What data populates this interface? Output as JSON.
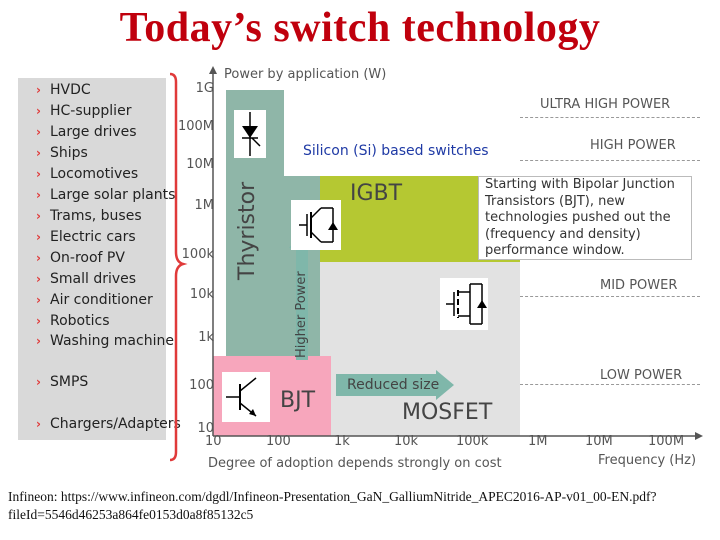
{
  "title": "Today’s switch technology",
  "applications": [
    "HVDC",
    "HC-supplier",
    "Large drives",
    "Ships",
    "Locomotives",
    "Large solar plants",
    "Trams, buses",
    "Electric cars",
    "On-roof PV",
    "Small drives",
    "Air conditioner",
    "Robotics",
    "Washing machine",
    "SMPS",
    "Chargers/Adapters"
  ],
  "y_axis": {
    "title": "Power by application (W)",
    "ticks": [
      "1G",
      "100M",
      "10M",
      "1M",
      "100k",
      "10k",
      "1k",
      "100",
      "10"
    ]
  },
  "x_axis": {
    "title": "Frequency (Hz)",
    "ticks": [
      "10",
      "100",
      "1k",
      "10k",
      "100k",
      "1M",
      "10M",
      "100M"
    ],
    "note": "Degree of adoption depends strongly on cost"
  },
  "power_levels": [
    "ULTRA HIGH POWER",
    "HIGH POWER",
    "MID POWER",
    "LOW POWER"
  ],
  "si_label": "Silicon (Si) based switches",
  "regions": {
    "thyristor": "Thyristor",
    "igbt": "IGBT",
    "bjt": "BJT",
    "mosfet": "MOSFET"
  },
  "arrows": {
    "higher_power": "Higher Power",
    "reduced_size": "Reduced size"
  },
  "note": "Starting with Bipolar Junction Transistors (BJT), new technologies pushed out the (frequency and density) performance window.",
  "footer": "Infineon: https://www.infineon.com/dgdl/Infineon-Presentation_GaN_GalliumNitride_APEC2016-AP-v01_00-EN.pdf?fileId=5546d46253a864fe0153d0a8f85132c5",
  "colors": {
    "title": "#c0000d",
    "thyristor": "#8fb6a8",
    "igbt": "#b5c832",
    "bjt": "#f7a6bc",
    "mosfet": "#dcdcdc",
    "arrow": "#7fb7aa",
    "bullet": "#e03a3a",
    "si_label": "#1f3aa5"
  }
}
